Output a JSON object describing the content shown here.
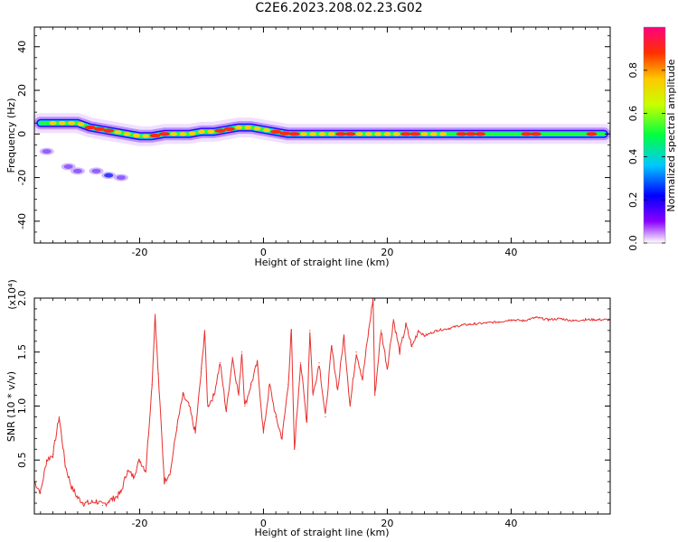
{
  "title": "C2E6.2023.208.02.23.G02",
  "chart_data": [
    {
      "type": "heatmap",
      "xlabel": "Height of straight line (km)",
      "ylabel": "Frequency (Hz)",
      "xlim": [
        -37,
        56
      ],
      "ylim": [
        -50,
        49
      ],
      "xticks": [
        -20,
        0,
        20,
        40
      ],
      "yticks": [
        -40,
        -20,
        0,
        20,
        40
      ],
      "colorbar": {
        "label": "Normalized spectral amplitude",
        "ticks": [
          0.0,
          0.2,
          0.4,
          0.6,
          0.8
        ],
        "range": [
          0,
          1
        ]
      },
      "ridge": {
        "x": [
          -36,
          -33,
          -30,
          -28,
          -26,
          -24,
          -22,
          -20,
          -18,
          -16,
          -14,
          -12,
          -10,
          -8,
          -6,
          -4,
          -2,
          0,
          2,
          4,
          6,
          8,
          10,
          12,
          14,
          16,
          18,
          20,
          22,
          24,
          26,
          28,
          30,
          35,
          40,
          45,
          50,
          55
        ],
        "y": [
          5,
          5,
          5,
          3,
          2,
          1,
          0,
          -1,
          -1,
          0,
          0,
          0,
          1,
          1,
          2,
          3,
          3,
          2,
          1,
          0,
          0,
          0,
          0,
          0,
          0,
          0,
          0,
          0,
          0,
          0,
          0,
          0,
          0,
          0,
          0,
          0,
          0,
          0
        ]
      },
      "blobs": [
        {
          "x": -30,
          "y": -17,
          "amp": 0.15
        },
        {
          "x": -27,
          "y": -17,
          "amp": 0.2
        },
        {
          "x": -25,
          "y": -19,
          "amp": 0.3
        },
        {
          "x": -23,
          "y": -20,
          "amp": 0.1
        },
        {
          "x": -31.5,
          "y": -15,
          "amp": 0.12
        },
        {
          "x": -35,
          "y": -8,
          "amp": 0.08
        }
      ]
    },
    {
      "type": "line",
      "xlabel": "Height of straight line (km)",
      "ylabel": "SNR (10 * v/v)",
      "y_multiplier": "(x10⁴)",
      "xlim": [
        -37,
        56
      ],
      "ylim": [
        0,
        2.0
      ],
      "xticks": [
        -20,
        0,
        20,
        40
      ],
      "yticks": [
        0.5,
        1.0,
        1.5,
        2.0
      ],
      "series": [
        {
          "color": "#e8302e",
          "x": [
            -37,
            -36,
            -35,
            -34,
            -33,
            -32,
            -31,
            -30,
            -29,
            -28,
            -27,
            -26,
            -25,
            -24,
            -23,
            -22,
            -21,
            -20,
            -19,
            -18,
            -17.5,
            -17,
            -16,
            -15,
            -14,
            -13,
            -12,
            -11,
            -10,
            -9.5,
            -9,
            -8,
            -7,
            -6,
            -5,
            -4,
            -3.5,
            -3,
            -2,
            -1,
            0,
            1,
            2,
            3,
            4,
            4.5,
            5,
            6,
            7,
            7.5,
            8,
            9,
            10,
            11,
            12,
            13,
            14,
            15,
            16,
            17,
            17.7,
            18,
            19,
            20,
            21,
            22,
            23,
            24,
            25,
            26,
            28,
            30,
            32,
            34,
            36,
            38,
            40,
            42,
            44,
            46,
            48,
            50,
            52,
            54,
            56
          ],
          "y": [
            0.3,
            0.2,
            0.5,
            0.55,
            0.9,
            0.45,
            0.25,
            0.15,
            0.1,
            0.1,
            0.12,
            0.08,
            0.12,
            0.15,
            0.2,
            0.4,
            0.35,
            0.5,
            0.4,
            1.2,
            1.85,
            1.3,
            0.3,
            0.4,
            0.8,
            1.1,
            1.0,
            0.75,
            1.35,
            1.7,
            1.0,
            1.1,
            1.4,
            0.95,
            1.45,
            1.1,
            1.5,
            1.0,
            1.2,
            1.4,
            0.75,
            1.2,
            0.9,
            0.7,
            1.2,
            1.7,
            0.6,
            1.4,
            0.85,
            1.7,
            1.1,
            1.4,
            0.9,
            1.55,
            1.15,
            1.65,
            1.0,
            1.5,
            1.25,
            1.7,
            2.0,
            1.1,
            1.7,
            1.35,
            1.8,
            1.5,
            1.75,
            1.55,
            1.7,
            1.65,
            1.7,
            1.72,
            1.75,
            1.76,
            1.77,
            1.78,
            1.8,
            1.79,
            1.82,
            1.8,
            1.81,
            1.79,
            1.8,
            1.8,
            1.8
          ]
        }
      ]
    }
  ]
}
